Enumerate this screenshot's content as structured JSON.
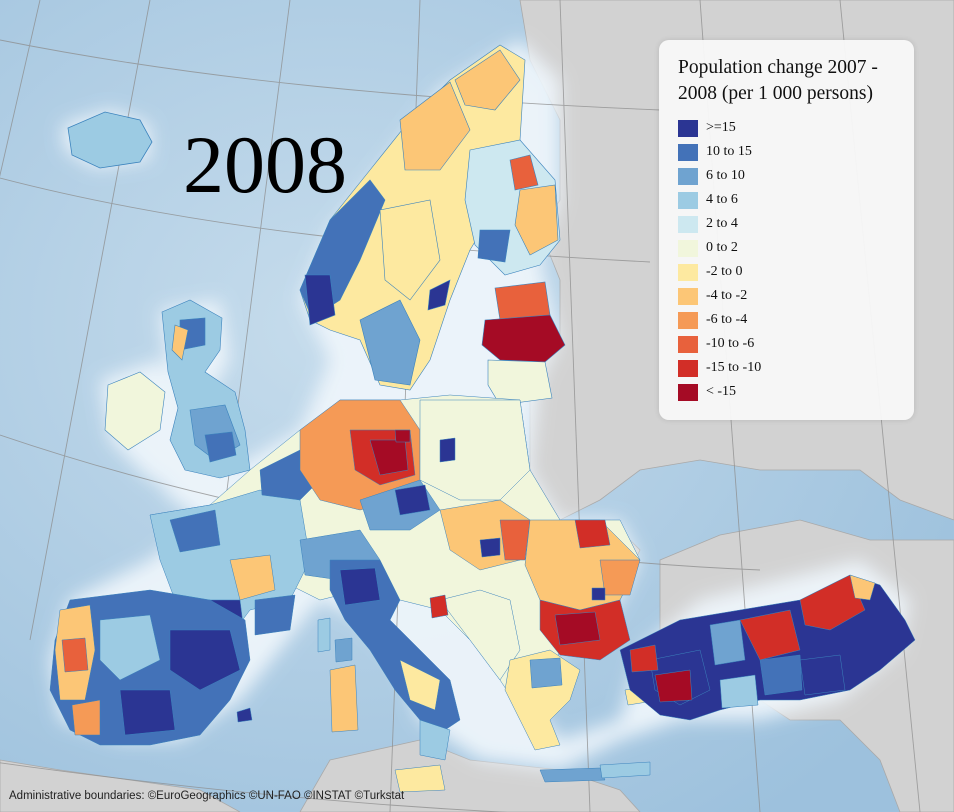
{
  "map": {
    "year_label": "2008",
    "credits": "Administrative boundaries: ©EuroGeographics ©UN-FAO ©INSTAT ©Turkstat",
    "colors": {
      "sea": "#a9c9e2",
      "coast_glow": "#eef5fb",
      "non_eu_land": "#d2d2d2",
      "graticule": "#8c8c8c",
      "region_border": "#3b83bd"
    }
  },
  "legend": {
    "title": "Population change 2007 - 2008 (per 1 000 persons)",
    "classes": [
      {
        "label": ">=15",
        "color": "#2b3593"
      },
      {
        "label": "10 to 15",
        "color": "#4372b8"
      },
      {
        "label": "6 to 10",
        "color": "#6fa3d0"
      },
      {
        "label": "4 to 6",
        "color": "#9ccbe3"
      },
      {
        "label": "2 to 4",
        "color": "#cde8f0"
      },
      {
        "label": "0 to 2",
        "color": "#f1f6dc"
      },
      {
        "label": "-2 to 0",
        "color": "#fde9a0"
      },
      {
        "label": "-4 to -2",
        "color": "#fcc676"
      },
      {
        "label": "-6 to -4",
        "color": "#f59a56"
      },
      {
        "label": "-10 to -6",
        "color": "#e8613c"
      },
      {
        "label": "-15 to -10",
        "color": "#d22e27"
      },
      {
        "label": "< -15",
        "color": "#a50b25"
      }
    ]
  }
}
